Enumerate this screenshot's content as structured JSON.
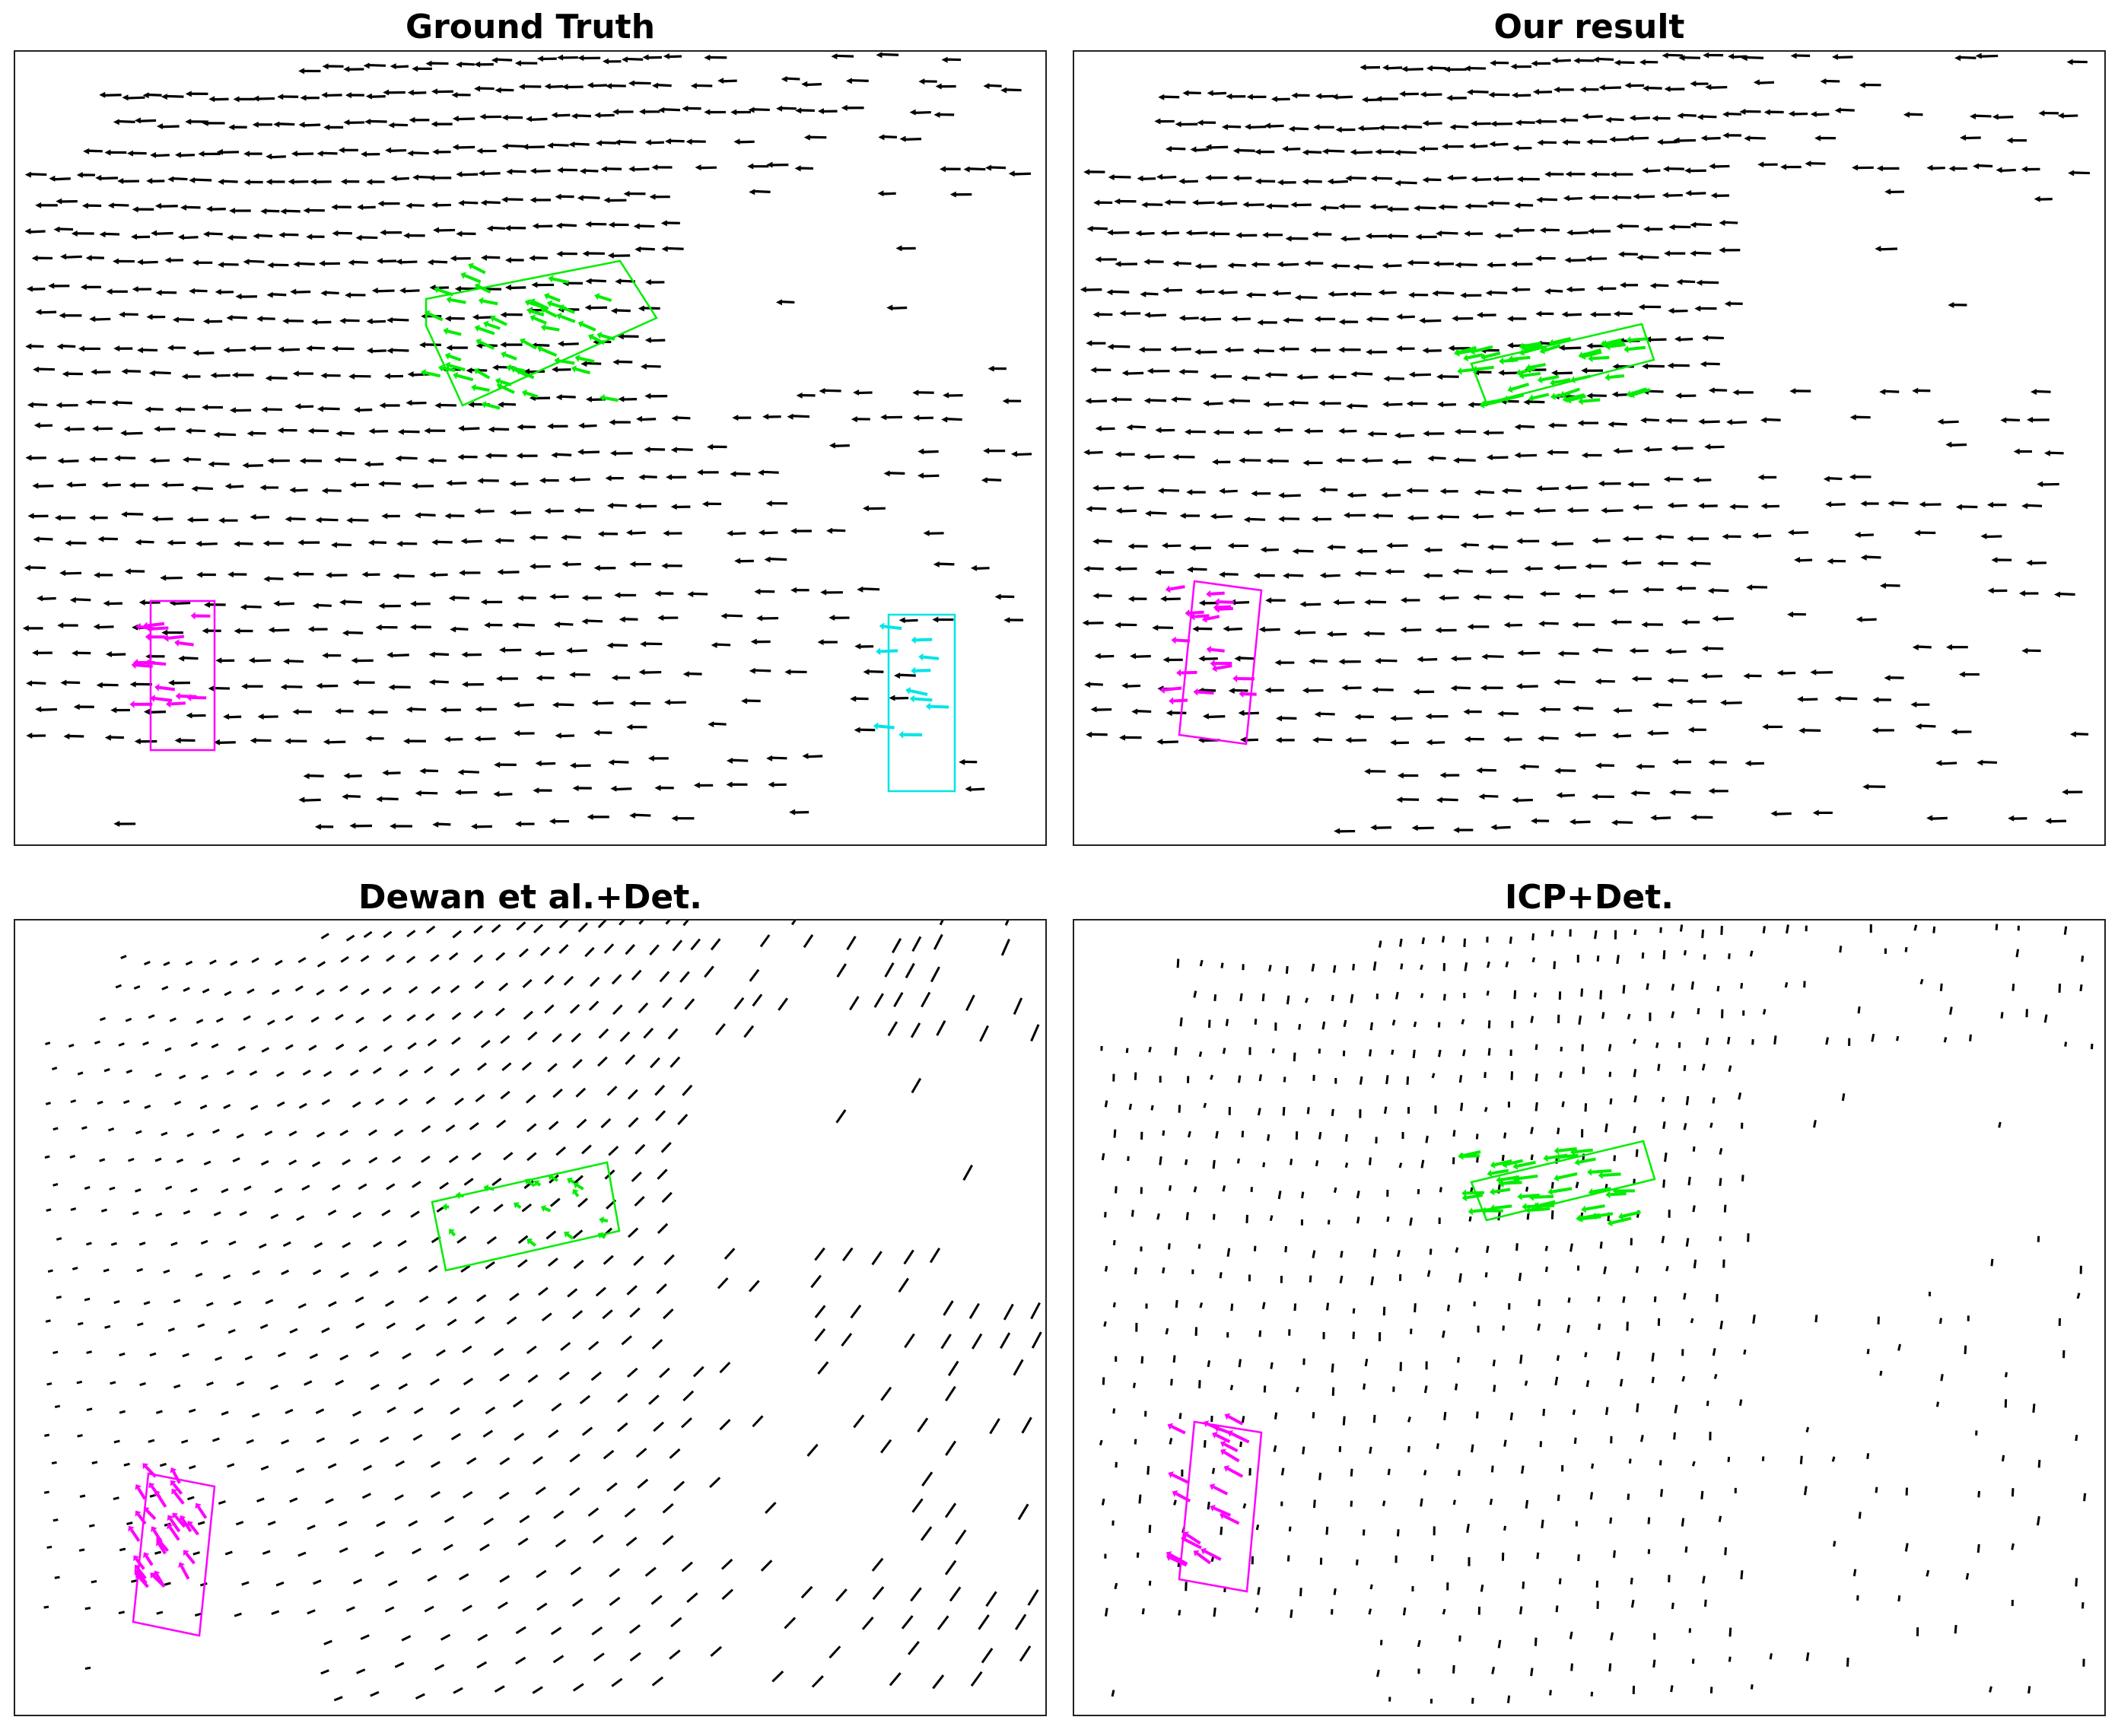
{
  "figure": {
    "panels": [
      {
        "id": "ground-truth",
        "title": "Ground Truth",
        "style": "arrows",
        "boxes": [
          {
            "name": "green-vehicle-box",
            "color": "#00ee00"
          },
          {
            "name": "magenta-vehicle-box",
            "color": "#ff00ff"
          },
          {
            "name": "cyan-vehicle-box",
            "color": "#00e5e5"
          }
        ]
      },
      {
        "id": "our-result",
        "title": "Our result",
        "style": "arrows",
        "boxes": [
          {
            "name": "green-vehicle-box",
            "color": "#00ee00"
          },
          {
            "name": "magenta-vehicle-box",
            "color": "#ff00ff"
          }
        ]
      },
      {
        "id": "dewan-det",
        "title": "Dewan et al.+Det.",
        "style": "ticks-slanted",
        "boxes": [
          {
            "name": "green-vehicle-box",
            "color": "#00ee00"
          },
          {
            "name": "magenta-vehicle-box",
            "color": "#ff00ff"
          }
        ]
      },
      {
        "id": "icp-det",
        "title": "ICP+Det.",
        "style": "ticks-vertical",
        "boxes": [
          {
            "name": "green-vehicle-box",
            "color": "#00ee00"
          },
          {
            "name": "magenta-vehicle-box",
            "color": "#ff00ff"
          }
        ]
      }
    ],
    "colors": {
      "background": "#000000",
      "frame": "#222222"
    }
  }
}
